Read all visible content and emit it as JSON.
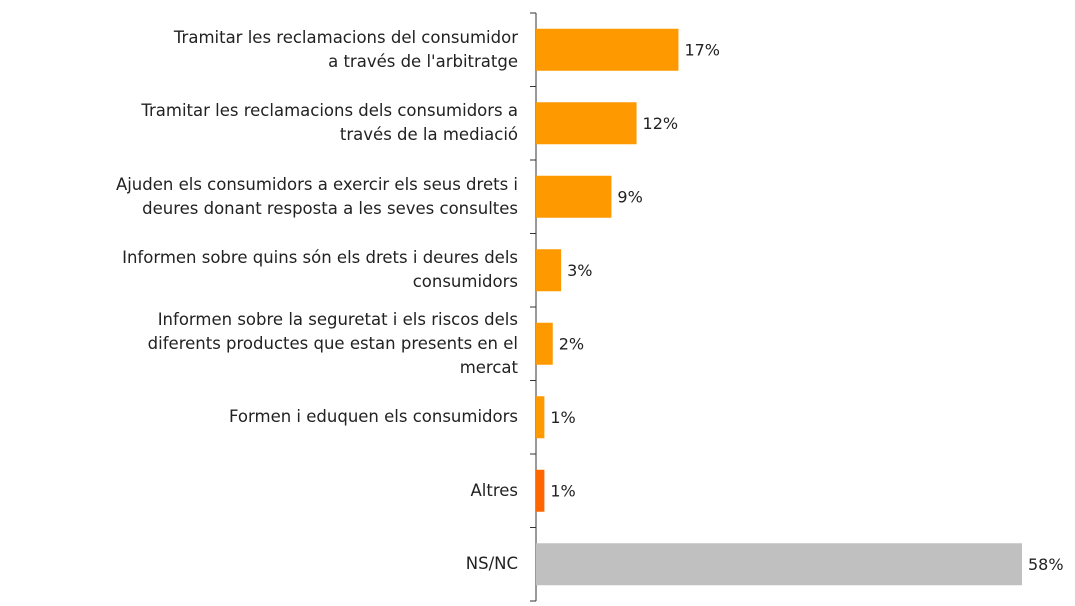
{
  "chart_data": {
    "type": "hbar",
    "categories": [
      "Tramitar les reclamacions del consumidor\na través de l'arbitratge",
      "Tramitar les reclamacions dels consumidors a\ntravés de la mediació",
      "Ajuden els consumidors a exercir els seus drets i\ndeures donant resposta a les seves consultes",
      "Informen sobre quins són els drets i deures dels\nconsumidors",
      "Informen sobre la seguretat i els riscos dels\ndiferents productes que estan presents en el\nmercat",
      "Formen i eduquen els consumidors",
      "Altres",
      "NS/NC"
    ],
    "values": [
      17,
      12,
      9,
      3,
      2,
      1,
      1,
      58
    ],
    "value_labels": [
      "17%",
      "12%",
      "9%",
      "3%",
      "2%",
      "1%",
      "1%",
      "58%"
    ],
    "colors": [
      "#FF9900",
      "#FF9900",
      "#FF9900",
      "#FF9900",
      "#FF9900",
      "#FF9900",
      "#FF6600",
      "#C0C0C0"
    ]
  }
}
